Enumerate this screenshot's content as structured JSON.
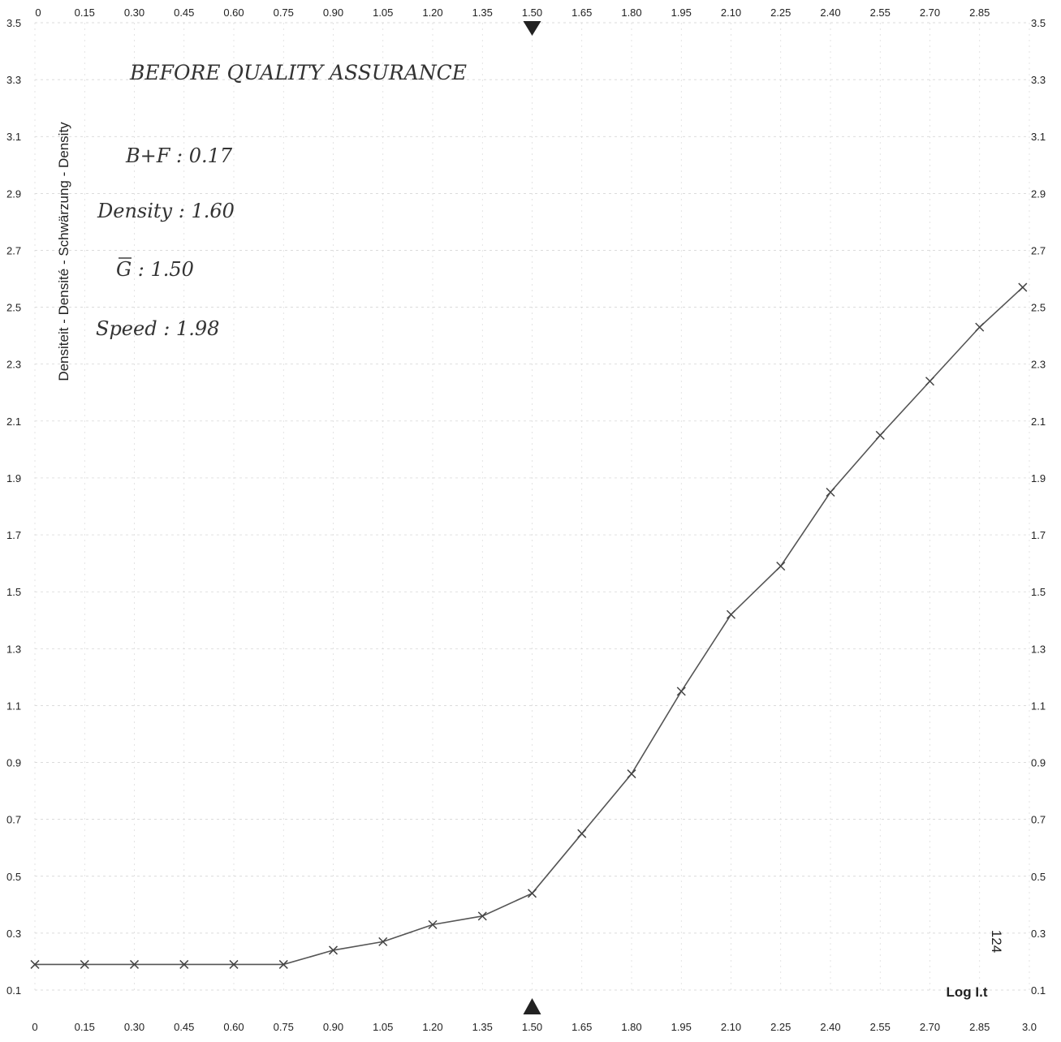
{
  "chart_data": {
    "type": "line",
    "xlabel": "Log I.t",
    "ylabel": "Densiteit - Densité - Schwärzung - Density",
    "x_ticks_top": [
      "0",
      "0.15",
      "0.30",
      "0.45",
      "0.60",
      "0.75",
      "0.90",
      "1.05",
      "1.20",
      "1.35",
      "1.50",
      "1.65",
      "1.80",
      "1.95",
      "2.10",
      "2.25",
      "2.40",
      "2.55",
      "2.70",
      "2.85"
    ],
    "x_ticks_bottom": [
      "0",
      "0.15",
      "0.30",
      "0.45",
      "0.60",
      "0.75",
      "0.90",
      "1.05",
      "1.20",
      "1.35",
      "1.50",
      "1.65",
      "1.80",
      "1.95",
      "2.10",
      "2.25",
      "2.40",
      "2.55",
      "2.70",
      "2.85",
      "3.0"
    ],
    "y_ticks": [
      "3.5",
      "3.3",
      "3.1",
      "2.9",
      "2.7",
      "2.5",
      "2.3",
      "2.1",
      "1.9",
      "1.7",
      "1.5",
      "1.3",
      "1.1",
      "0.9",
      "0.7",
      "0.5",
      "0.3",
      "0.1"
    ],
    "xlim": [
      0,
      3.0
    ],
    "ylim": [
      0.1,
      3.5
    ],
    "grid": true,
    "marker_x": 1.5,
    "series": [
      {
        "x": [
          0,
          0.15,
          0.3,
          0.45,
          0.6,
          0.75,
          0.9,
          1.05,
          1.2,
          1.35,
          1.5,
          1.65,
          1.8,
          1.95,
          2.1,
          2.25,
          2.4,
          2.55,
          2.7,
          2.85,
          2.98
        ],
        "values": [
          0.19,
          0.19,
          0.19,
          0.19,
          0.19,
          0.19,
          0.24,
          0.27,
          0.33,
          0.36,
          0.44,
          0.65,
          0.86,
          1.15,
          1.42,
          1.59,
          1.85,
          2.05,
          2.24,
          2.43,
          2.57
        ]
      }
    ],
    "annotations": [
      "BEFORE QUALITY ASSURANCE",
      "B+F : 0.17",
      "Density : 1.60",
      "G : 1.50",
      "Speed : 1.98",
      "124"
    ]
  }
}
